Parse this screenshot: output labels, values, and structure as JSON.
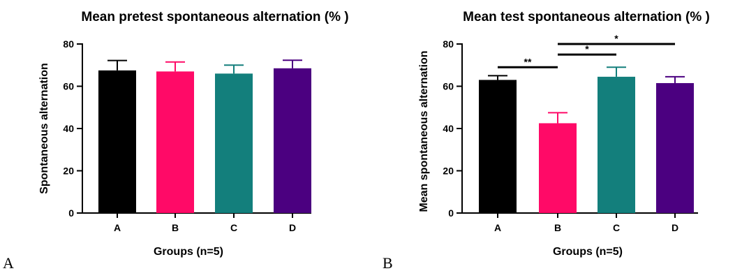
{
  "chart_data": [
    {
      "type": "bar",
      "title": "Mean pretest spontaneous alternation (% )",
      "panel": "A",
      "xlabel": "Groups (n=5)",
      "ylabel": "Spontaneous alternation",
      "categories": [
        "A",
        "B",
        "C",
        "D"
      ],
      "values": [
        67.5,
        67,
        66,
        68.5
      ],
      "errors": [
        4.7,
        4.5,
        4,
        3.8
      ],
      "colors": [
        "#000000",
        "#ff0a67",
        "#137f7c",
        "#4b0080"
      ],
      "ylim": [
        0,
        80
      ],
      "yticks": [
        0,
        20,
        40,
        60,
        80
      ],
      "grid": false,
      "significance": []
    },
    {
      "type": "bar",
      "title": "Mean test spontaneous alternation (% )",
      "panel": "B",
      "xlabel": "Groups (n=5)",
      "ylabel": "Mean spontaneous alternation",
      "categories": [
        "A",
        "B",
        "C",
        "D"
      ],
      "values": [
        63,
        42.5,
        64.5,
        61.5
      ],
      "errors": [
        2,
        5,
        4.5,
        3
      ],
      "colors": [
        "#000000",
        "#ff0a67",
        "#137f7c",
        "#4b0080"
      ],
      "ylim": [
        0,
        80
      ],
      "yticks": [
        0,
        20,
        40,
        60,
        80
      ],
      "grid": false,
      "significance": [
        {
          "from": "A",
          "to": "B",
          "y": 69,
          "label": "**"
        },
        {
          "from": "B",
          "to": "C",
          "y": 75,
          "label": "*"
        },
        {
          "from": "B",
          "to": "D",
          "y": 80,
          "label": "*"
        }
      ]
    }
  ]
}
